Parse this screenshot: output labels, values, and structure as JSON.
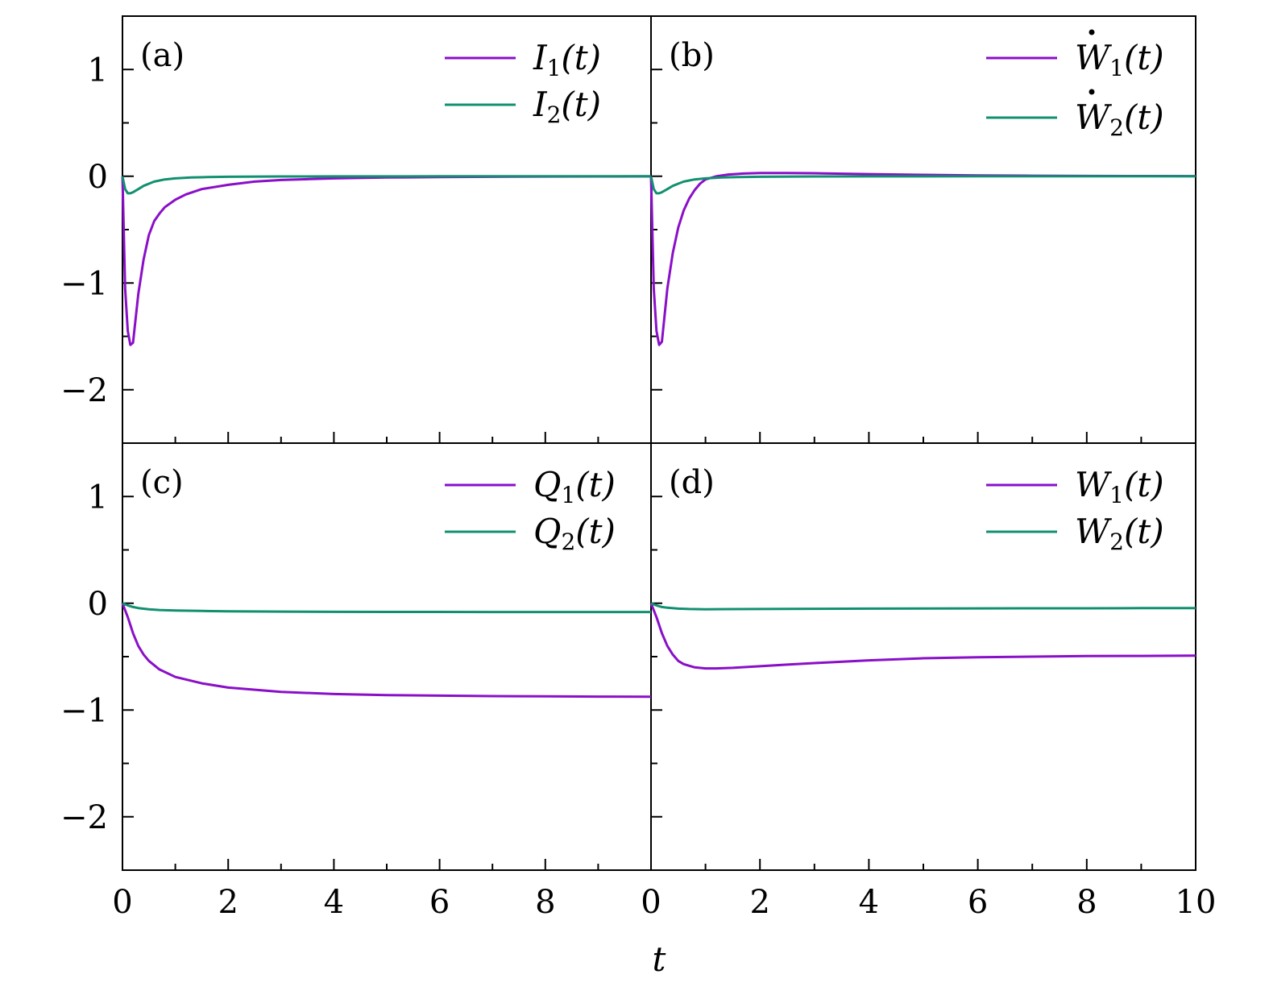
{
  "chart_data": {
    "type": "line",
    "xlabel": "t",
    "xlim": [
      0,
      10
    ],
    "ylim": [
      -2.5,
      1.5
    ],
    "x_ticks": [
      0,
      2,
      4,
      6,
      8,
      10
    ],
    "y_ticks": [
      1,
      0,
      -1,
      -2
    ],
    "x_tick_labels": {
      "panel_left": [
        "0",
        "2",
        "4",
        "6",
        "8"
      ],
      "panel_right": [
        "0",
        "2",
        "4",
        "6",
        "8",
        "10"
      ]
    },
    "y_tick_labels": [
      "1",
      "0",
      "−1",
      "−2"
    ],
    "colors": {
      "series1": "#8a0fc8",
      "series2": "#119070"
    },
    "panels": [
      {
        "label": "(a)",
        "series": [
          {
            "name": "I1(t)",
            "base": "I",
            "sub": "1",
            "suffix": "(t)",
            "dot": false,
            "x": [
              0,
              0.05,
              0.1,
              0.15,
              0.2,
              0.3,
              0.4,
              0.5,
              0.6,
              0.7,
              0.8,
              1.0,
              1.2,
              1.5,
              2,
              2.5,
              3,
              4,
              5,
              6,
              7,
              8,
              9,
              10
            ],
            "y": [
              0,
              -1.05,
              -1.45,
              -1.58,
              -1.56,
              -1.1,
              -0.78,
              -0.55,
              -0.42,
              -0.35,
              -0.29,
              -0.22,
              -0.17,
              -0.12,
              -0.08,
              -0.05,
              -0.035,
              -0.02,
              -0.012,
              -0.008,
              -0.005,
              -0.003,
              -0.002,
              -0.001
            ]
          },
          {
            "name": "I2(t)",
            "base": "I",
            "sub": "2",
            "suffix": "(t)",
            "dot": false,
            "x": [
              0,
              0.05,
              0.1,
              0.15,
              0.2,
              0.3,
              0.4,
              0.5,
              0.6,
              0.8,
              1.0,
              1.3,
              1.6,
              2,
              3,
              4,
              6,
              8,
              10
            ],
            "y": [
              0,
              -0.12,
              -0.16,
              -0.16,
              -0.15,
              -0.12,
              -0.09,
              -0.07,
              -0.05,
              -0.03,
              -0.02,
              -0.012,
              -0.008,
              -0.005,
              -0.002,
              -0.001,
              0,
              0,
              0
            ]
          }
        ]
      },
      {
        "label": "(b)",
        "series": [
          {
            "name": "Ẇ1(t)",
            "base": "W",
            "sub": "1",
            "suffix": "(t)",
            "dot": true,
            "x": [
              0,
              0.05,
              0.1,
              0.15,
              0.2,
              0.3,
              0.4,
              0.5,
              0.6,
              0.7,
              0.8,
              0.9,
              1.0,
              1.2,
              1.4,
              1.7,
              2,
              2.5,
              3,
              4,
              5,
              6,
              7,
              8,
              9,
              10
            ],
            "y": [
              0,
              -1.05,
              -1.45,
              -1.58,
              -1.55,
              -1.05,
              -0.72,
              -0.48,
              -0.32,
              -0.21,
              -0.13,
              -0.07,
              -0.03,
              0.0,
              0.015,
              0.025,
              0.03,
              0.03,
              0.028,
              0.02,
              0.013,
              0.008,
              0.005,
              0.003,
              0.002,
              0.001
            ]
          },
          {
            "name": "Ẇ2(t)",
            "base": "W",
            "sub": "2",
            "suffix": "(t)",
            "dot": true,
            "x": [
              0,
              0.05,
              0.1,
              0.15,
              0.2,
              0.3,
              0.4,
              0.5,
              0.6,
              0.8,
              1.0,
              1.3,
              1.6,
              2,
              3,
              4,
              6,
              8,
              10
            ],
            "y": [
              0,
              -0.12,
              -0.16,
              -0.16,
              -0.15,
              -0.12,
              -0.09,
              -0.07,
              -0.05,
              -0.03,
              -0.02,
              -0.012,
              -0.008,
              -0.005,
              -0.002,
              -0.001,
              0,
              0,
              0
            ]
          }
        ]
      },
      {
        "label": "(c)",
        "series": [
          {
            "name": "Q1(t)",
            "base": "Q",
            "sub": "1",
            "suffix": "(t)",
            "dot": false,
            "x": [
              0,
              0.1,
              0.2,
              0.3,
              0.4,
              0.5,
              0.7,
              1.0,
              1.5,
              2,
              3,
              4,
              5,
              6,
              7,
              8,
              9,
              10
            ],
            "y": [
              0,
              -0.13,
              -0.28,
              -0.4,
              -0.48,
              -0.54,
              -0.62,
              -0.69,
              -0.75,
              -0.79,
              -0.83,
              -0.85,
              -0.86,
              -0.865,
              -0.87,
              -0.872,
              -0.874,
              -0.875
            ]
          },
          {
            "name": "Q2(t)",
            "base": "Q",
            "sub": "2",
            "suffix": "(t)",
            "dot": false,
            "x": [
              0,
              0.1,
              0.2,
              0.3,
              0.5,
              0.7,
              1.0,
              1.5,
              2,
              3,
              4,
              5,
              6,
              7,
              8,
              9,
              10
            ],
            "y": [
              0,
              -0.02,
              -0.035,
              -0.045,
              -0.056,
              -0.063,
              -0.068,
              -0.072,
              -0.075,
              -0.078,
              -0.08,
              -0.081,
              -0.081,
              -0.082,
              -0.082,
              -0.082,
              -0.082
            ]
          }
        ]
      },
      {
        "label": "(d)",
        "series": [
          {
            "name": "W1(t)",
            "base": "W",
            "sub": "1",
            "suffix": "(t)",
            "dot": false,
            "x": [
              0,
              0.1,
              0.2,
              0.3,
              0.4,
              0.5,
              0.6,
              0.8,
              1.0,
              1.2,
              1.5,
              2,
              2.5,
              3,
              4,
              5,
              6,
              7,
              8,
              9,
              10
            ],
            "y": [
              0,
              -0.13,
              -0.28,
              -0.4,
              -0.48,
              -0.54,
              -0.57,
              -0.6,
              -0.61,
              -0.61,
              -0.605,
              -0.59,
              -0.575,
              -0.56,
              -0.535,
              -0.515,
              -0.505,
              -0.5,
              -0.495,
              -0.493,
              -0.49
            ]
          },
          {
            "name": "W2(t)",
            "base": "W",
            "sub": "2",
            "suffix": "(t)",
            "dot": false,
            "x": [
              0,
              0.1,
              0.2,
              0.3,
              0.5,
              0.7,
              1.0,
              1.5,
              2,
              3,
              4,
              5,
              6,
              7,
              8,
              9,
              10
            ],
            "y": [
              0,
              -0.02,
              -0.035,
              -0.042,
              -0.05,
              -0.054,
              -0.056,
              -0.055,
              -0.054,
              -0.052,
              -0.05,
              -0.049,
              -0.048,
              -0.047,
              -0.047,
              -0.046,
              -0.046
            ]
          }
        ]
      }
    ]
  }
}
